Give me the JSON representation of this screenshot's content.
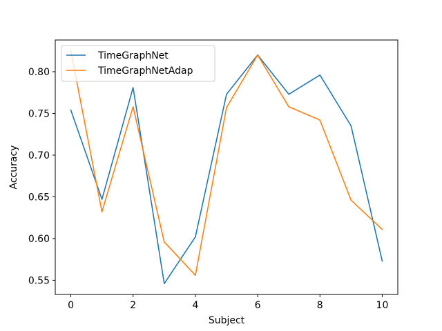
{
  "chart_data": {
    "type": "line",
    "xlabel": "Subject",
    "ylabel": "Accuracy",
    "xlim": [
      -0.5,
      10.5
    ],
    "ylim": [
      0.533,
      0.838
    ],
    "xticks": [
      0,
      2,
      4,
      6,
      8,
      10
    ],
    "xtick_labels": [
      "0",
      "2",
      "4",
      "6",
      "8",
      "10"
    ],
    "yticks": [
      0.55,
      0.6,
      0.65,
      0.7,
      0.75,
      0.8
    ],
    "ytick_labels": [
      "0.55",
      "0.60",
      "0.65",
      "0.70",
      "0.75",
      "0.80"
    ],
    "grid": false,
    "legend_position": "top-left",
    "x": [
      0,
      1,
      2,
      3,
      4,
      5,
      6,
      7,
      8,
      9,
      10
    ],
    "series": [
      {
        "name": "TimeGraphNet",
        "color": "#1f77b4",
        "values": [
          0.754,
          0.647,
          0.781,
          0.546,
          0.602,
          0.773,
          0.82,
          0.773,
          0.796,
          0.735,
          0.573
        ]
      },
      {
        "name": "TimeGraphNetAdap",
        "color": "#ff7f0e",
        "values": [
          0.825,
          0.632,
          0.758,
          0.596,
          0.556,
          0.757,
          0.82,
          0.758,
          0.742,
          0.646,
          0.611
        ]
      }
    ]
  }
}
